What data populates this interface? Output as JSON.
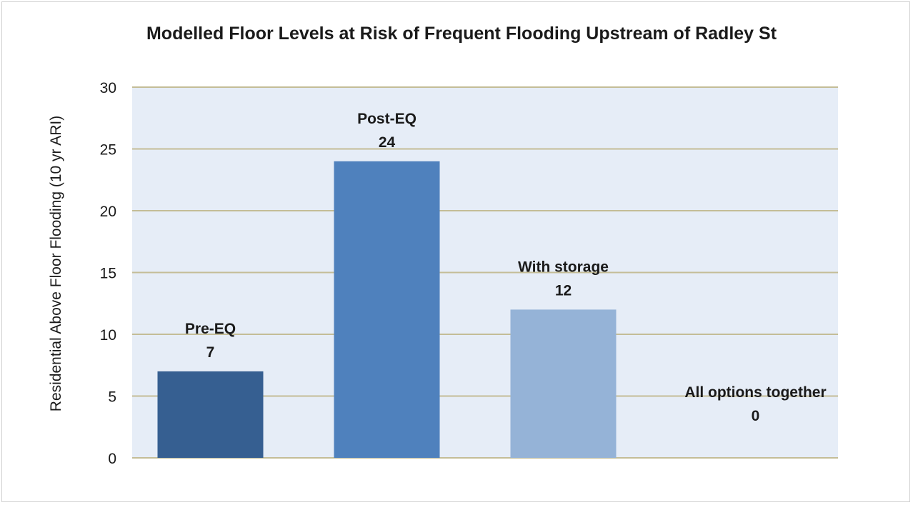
{
  "chart_data": {
    "type": "bar",
    "title": "Modelled Floor Levels at Risk of Frequent Flooding Upstream of Radley St",
    "xlabel": "",
    "ylabel": "Residential Above Floor Flooding (10 yr ARI)",
    "ylim": [
      0,
      30
    ],
    "yticks": [
      "0",
      "5",
      "10",
      "15",
      "20",
      "25",
      "30"
    ],
    "grid": true,
    "categories": [
      "Pre-EQ",
      "Post-EQ",
      "With storage",
      "All options together"
    ],
    "values": [
      7,
      24,
      12,
      0
    ],
    "colors": [
      "#365f91",
      "#4f81bd",
      "#95b3d7",
      "#c6d9f1"
    ],
    "plot_bg": "#e6edf7",
    "grid_color": "#c4bd97"
  }
}
